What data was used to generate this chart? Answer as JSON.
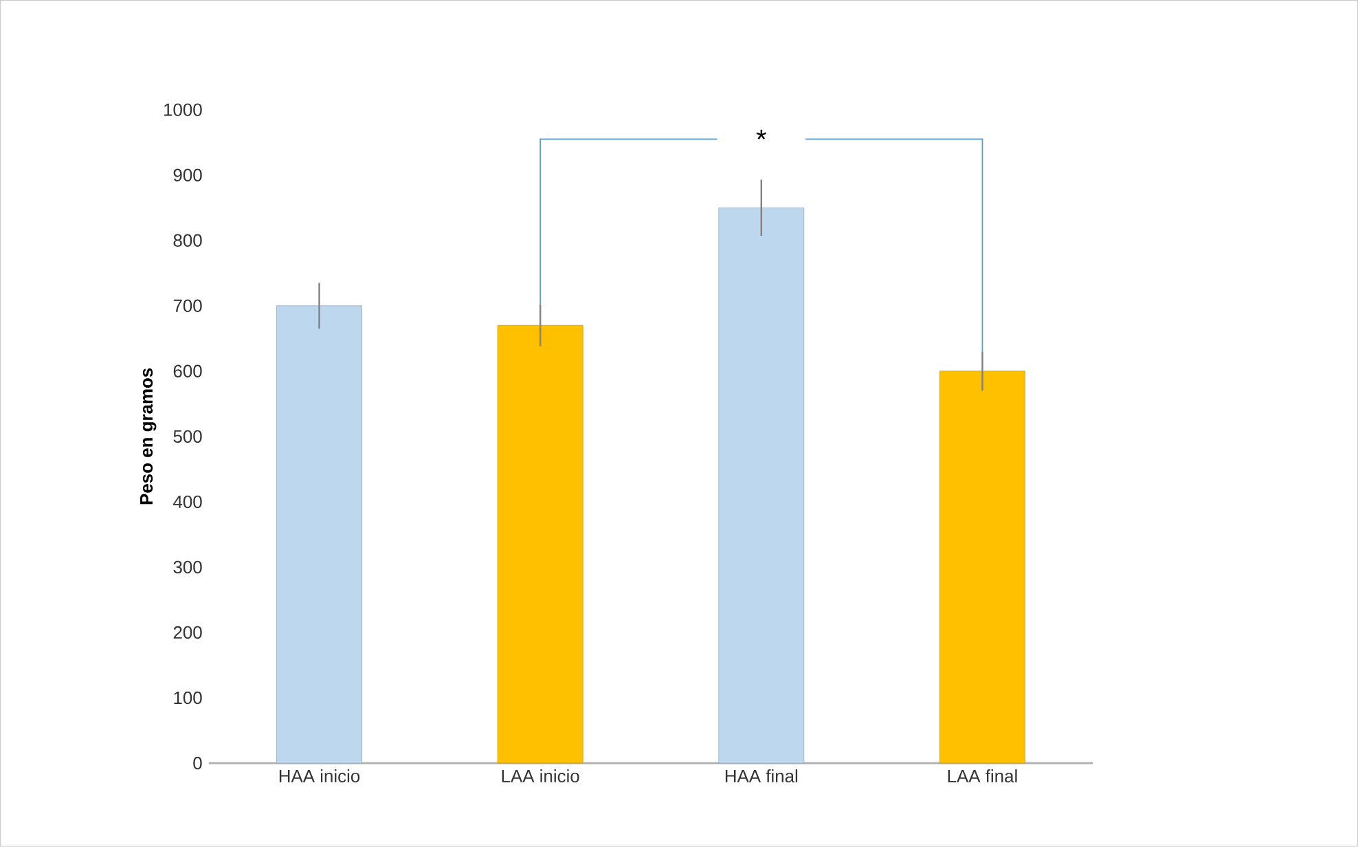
{
  "chart_data": {
    "type": "bar",
    "ylabel": "Peso en gramos",
    "categories": [
      "HAA inicio",
      "LAA inicio",
      "HAA final",
      "LAA final"
    ],
    "values": [
      700,
      670,
      850,
      600
    ],
    "errors": [
      35,
      32,
      43,
      30
    ],
    "colors": [
      "#bdd7ee",
      "#ffc000",
      "#bdd7ee",
      "#ffc000"
    ],
    "ylim": [
      0,
      1000
    ],
    "yticks": [
      0,
      100,
      200,
      300,
      400,
      500,
      600,
      700,
      800,
      900,
      1000
    ],
    "annotations": [
      "*"
    ]
  }
}
